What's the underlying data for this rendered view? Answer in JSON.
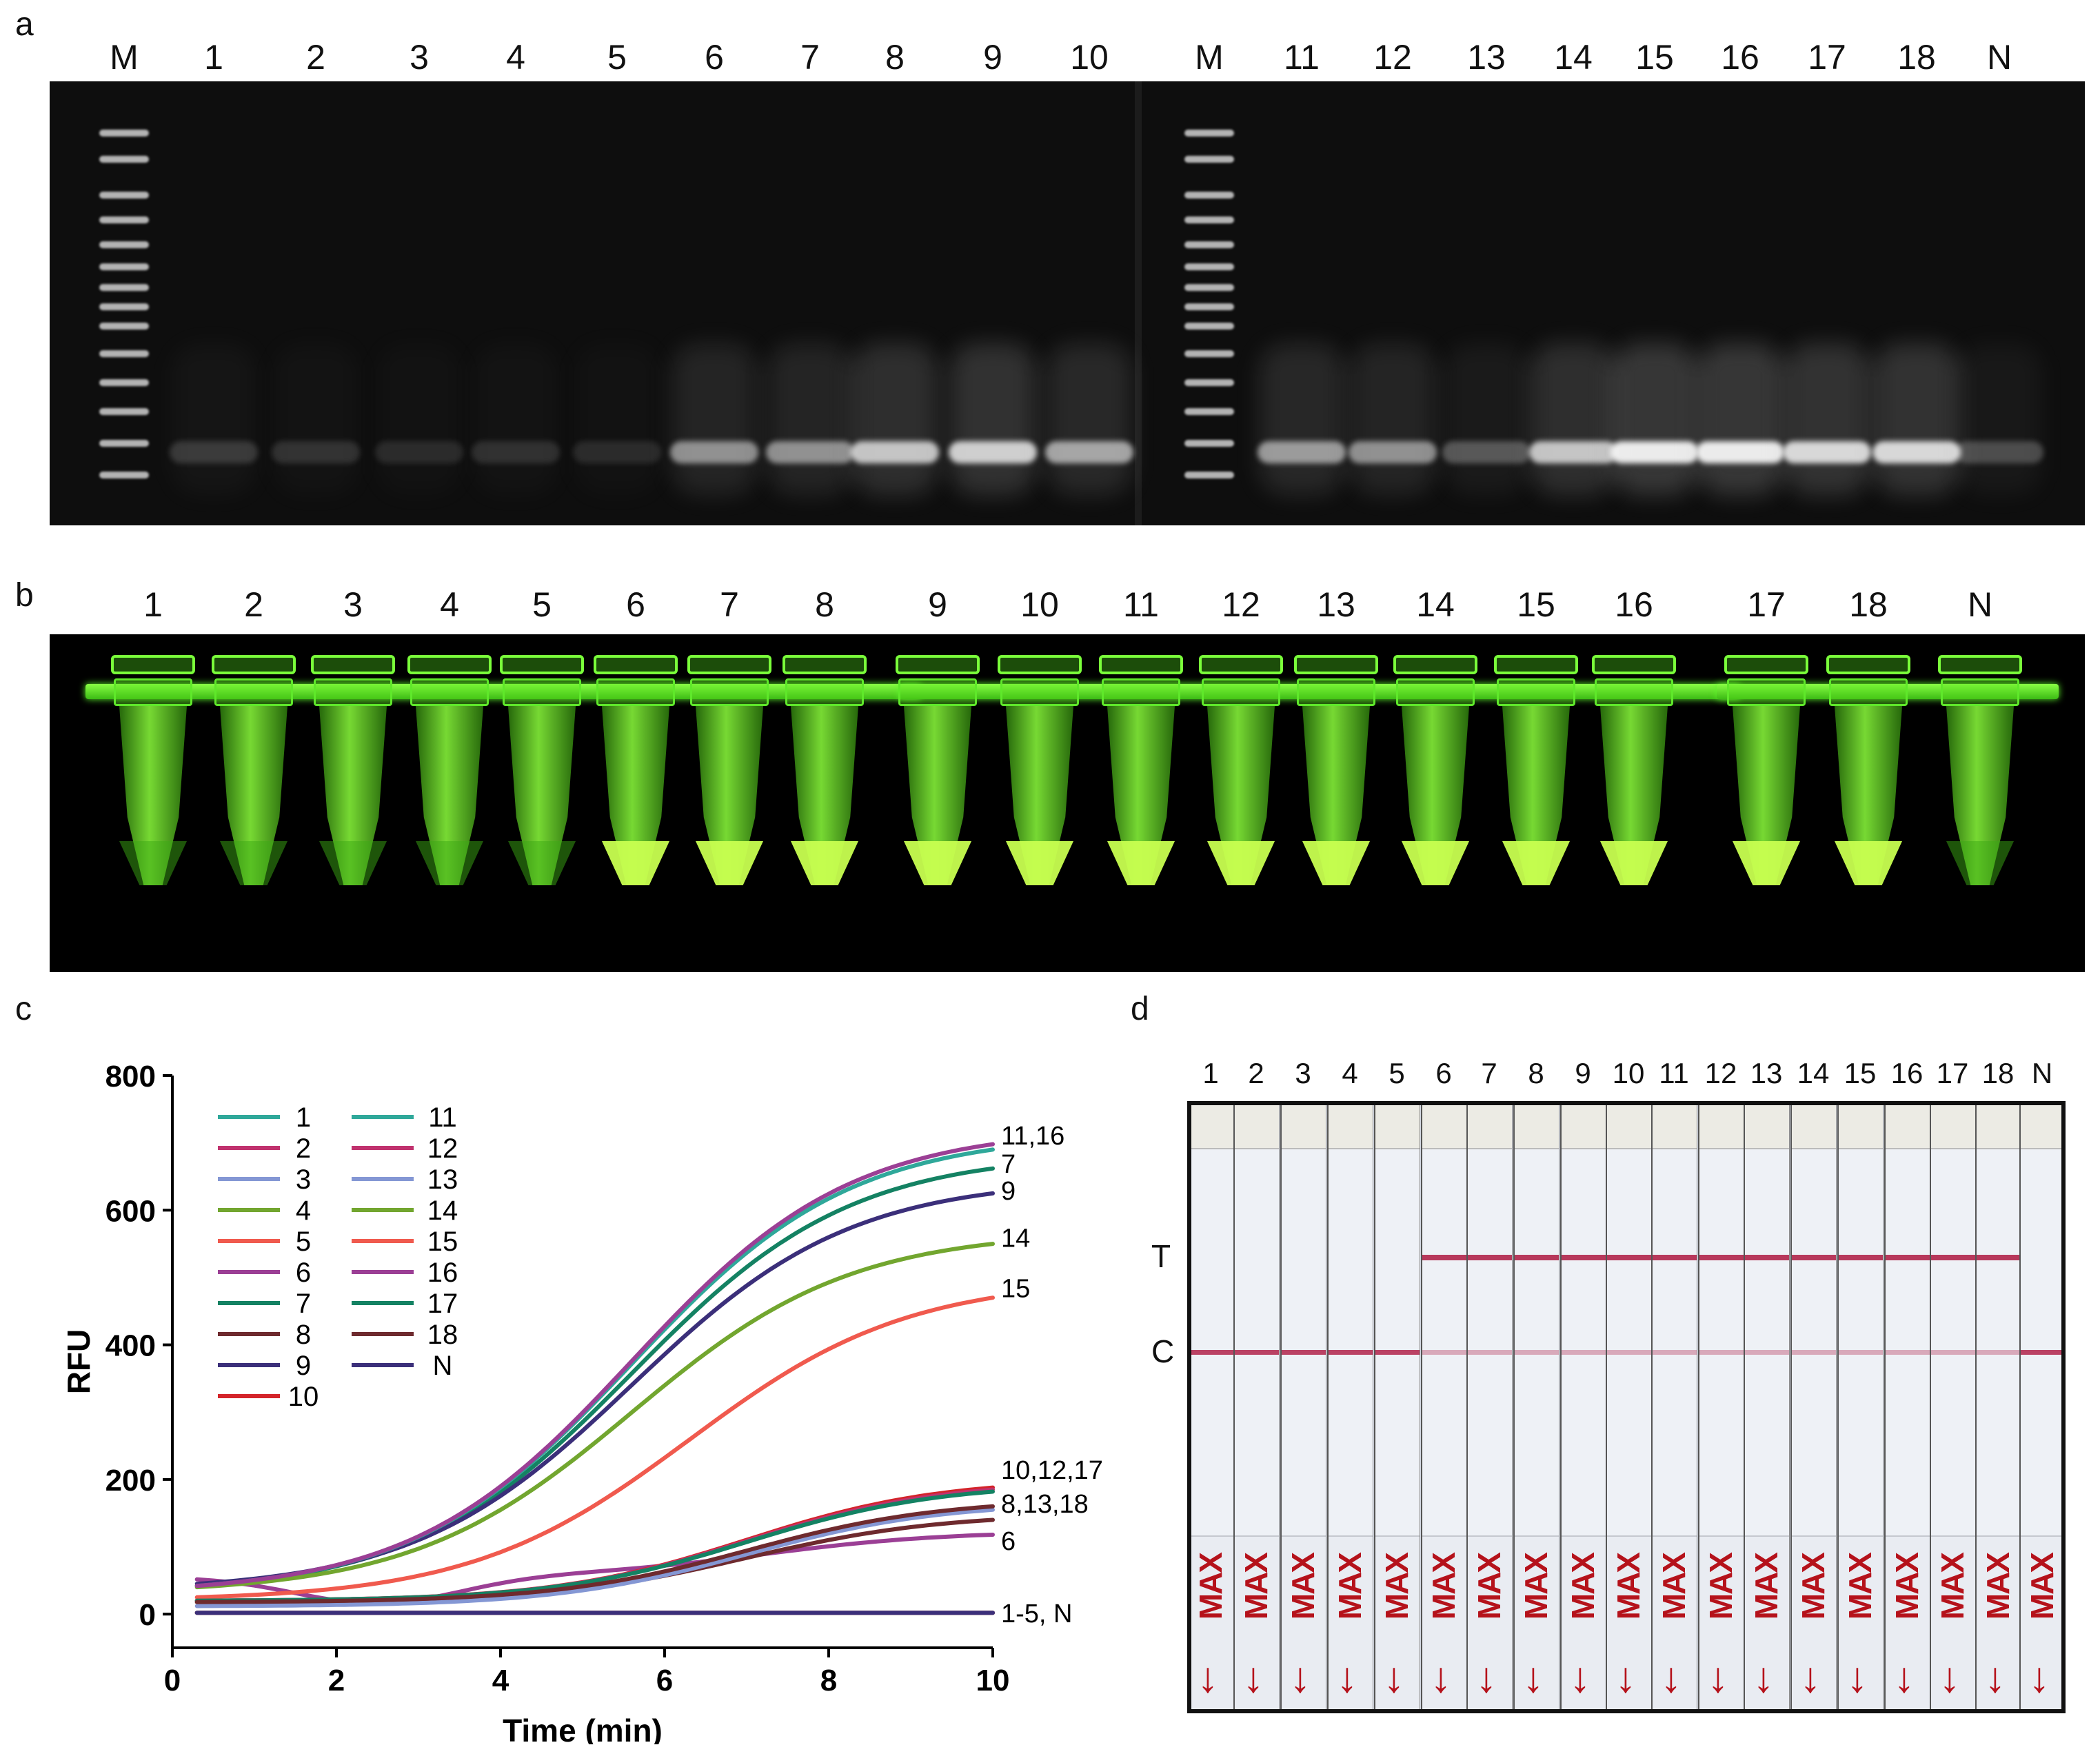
{
  "panel_labels": {
    "a": "a",
    "b": "b",
    "c": "c",
    "d": "d"
  },
  "panel_a": {
    "lanes": [
      "M",
      "1",
      "2",
      "3",
      "4",
      "5",
      "6",
      "7",
      "8",
      "9",
      "10",
      "M",
      "11",
      "12",
      "13",
      "14",
      "15",
      "16",
      "17",
      "18",
      "N"
    ]
  },
  "panel_b": {
    "lanes": [
      "1",
      "2",
      "3",
      "4",
      "5",
      "6",
      "7",
      "8",
      "9",
      "10",
      "11",
      "12",
      "13",
      "14",
      "15",
      "16",
      "17",
      "18",
      "N"
    ]
  },
  "panel_d": {
    "lanes": [
      "1",
      "2",
      "3",
      "4",
      "5",
      "6",
      "7",
      "8",
      "9",
      "10",
      "11",
      "12",
      "13",
      "14",
      "15",
      "16",
      "17",
      "18",
      "N"
    ],
    "t_label": "T",
    "c_label": "C",
    "max_text": "MAX",
    "arrow": "↓"
  },
  "chart_data": {
    "type": "line",
    "xlabel": "Time (min)",
    "ylabel": "RFU",
    "xlim": [
      0,
      10
    ],
    "ylim": [
      -50,
      800
    ],
    "xticks": [
      0,
      2,
      4,
      6,
      8,
      10
    ],
    "yticks": [
      0,
      200,
      400,
      600,
      800
    ],
    "legend": {
      "col1": [
        "1",
        "2",
        "3",
        "4",
        "5",
        "6",
        "7",
        "8",
        "9",
        "10"
      ],
      "col2": [
        "11",
        "12",
        "13",
        "14",
        "15",
        "16",
        "17",
        "18",
        "N"
      ]
    },
    "end_labels": [
      {
        "text": "11,16",
        "y": 712
      },
      {
        "text": "7",
        "y": 670
      },
      {
        "text": "9",
        "y": 630
      },
      {
        "text": "14",
        "y": 560
      },
      {
        "text": "15",
        "y": 485
      },
      {
        "text": "10,12,17",
        "y": 215
      },
      {
        "text": "8,13,18",
        "y": 165
      },
      {
        "text": "6",
        "y": 110
      },
      {
        "text": "1-5, N",
        "y": 2
      }
    ],
    "series": [
      {
        "name": "1",
        "color": "#2fa89a",
        "start": 2,
        "end": 2,
        "mid": 5,
        "k": 1.0
      },
      {
        "name": "2",
        "color": "#c0326e",
        "start": 2,
        "end": 2,
        "mid": 5,
        "k": 1.0
      },
      {
        "name": "3",
        "color": "#8497d4",
        "start": 2,
        "end": 2,
        "mid": 5,
        "k": 1.0
      },
      {
        "name": "4",
        "color": "#72a62f",
        "start": 2,
        "end": 2,
        "mid": 5,
        "k": 1.0
      },
      {
        "name": "5",
        "color": "#f05a4e",
        "start": 2,
        "end": 2,
        "mid": 5,
        "k": 1.0
      },
      {
        "name": "6",
        "color": "#9b3f95",
        "start": 55,
        "end": 118,
        "mid": 7.2,
        "k": 0.9
      },
      {
        "name": "7",
        "color": "#148263",
        "start": 42,
        "end": 662,
        "mid": 5.6,
        "k": 0.75
      },
      {
        "name": "8",
        "color": "#6e2a2e",
        "start": 18,
        "end": 140,
        "mid": 7.0,
        "k": 0.85
      },
      {
        "name": "9",
        "color": "#3b2f7a",
        "start": 45,
        "end": 625,
        "mid": 5.6,
        "k": 0.75
      },
      {
        "name": "10",
        "color": "#d4242a",
        "start": 20,
        "end": 188,
        "mid": 7.0,
        "k": 0.85
      },
      {
        "name": "11",
        "color": "#2fa89a",
        "start": 42,
        "end": 690,
        "mid": 5.6,
        "k": 0.75
      },
      {
        "name": "12",
        "color": "#c0326e",
        "start": 20,
        "end": 185,
        "mid": 7.0,
        "k": 0.85
      },
      {
        "name": "13",
        "color": "#8497d4",
        "start": 12,
        "end": 155,
        "mid": 7.0,
        "k": 0.85
      },
      {
        "name": "14",
        "color": "#72a62f",
        "start": 40,
        "end": 550,
        "mid": 5.6,
        "k": 0.75
      },
      {
        "name": "15",
        "color": "#f05a4e",
        "start": 25,
        "end": 470,
        "mid": 6.3,
        "k": 0.75
      },
      {
        "name": "16",
        "color": "#9b3f95",
        "start": 42,
        "end": 698,
        "mid": 5.6,
        "k": 0.75
      },
      {
        "name": "17",
        "color": "#148263",
        "start": 20,
        "end": 182,
        "mid": 7.0,
        "k": 0.85
      },
      {
        "name": "18",
        "color": "#6e2a2e",
        "start": 18,
        "end": 160,
        "mid": 7.0,
        "k": 0.85
      },
      {
        "name": "N",
        "color": "#3b2f7a",
        "start": 2,
        "end": 2,
        "mid": 5,
        "k": 1.0
      }
    ]
  }
}
